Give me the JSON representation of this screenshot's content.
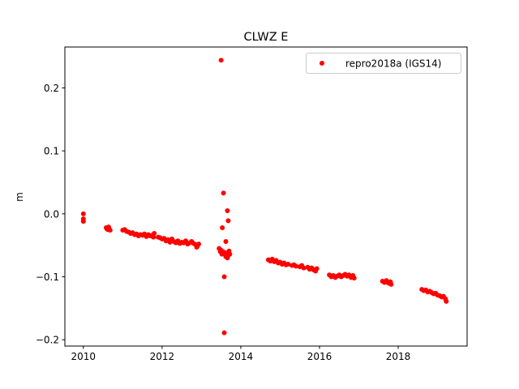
{
  "chart_data": {
    "type": "scatter",
    "title": "CLWZ E",
    "xlabel": "",
    "ylabel": "m",
    "xlim": [
      2009.53,
      2019.75
    ],
    "ylim": [
      -0.21,
      0.265
    ],
    "xticks": [
      2010,
      2012,
      2014,
      2016,
      2018
    ],
    "xtick_labels": [
      "2010",
      "2012",
      "2014",
      "2016",
      "2018"
    ],
    "yticks": [
      0.2,
      0.1,
      0.0,
      -0.1,
      -0.2
    ],
    "ytick_labels": [
      "0.2",
      "0.1",
      "0.0",
      "−0.1",
      "−0.2"
    ],
    "grid": false,
    "legend": {
      "placement": "top-right",
      "entries": [
        {
          "label": "repro2018a (IGS14)",
          "color": "#ff0000",
          "marker": "circle"
        }
      ]
    },
    "series": [
      {
        "name": "repro2018a (IGS14)",
        "color": "#ff0000",
        "points": [
          [
            2010.0,
            0.0
          ],
          [
            2010.0,
            -0.008
          ],
          [
            2010.0,
            -0.012
          ],
          [
            2010.58,
            -0.022
          ],
          [
            2010.62,
            -0.025
          ],
          [
            2010.65,
            -0.023
          ],
          [
            2010.68,
            -0.026
          ],
          [
            2010.64,
            -0.021
          ],
          [
            2010.6,
            -0.024
          ],
          [
            2011.0,
            -0.026
          ],
          [
            2011.05,
            -0.025
          ],
          [
            2011.1,
            -0.028
          ],
          [
            2011.15,
            -0.029
          ],
          [
            2011.2,
            -0.031
          ],
          [
            2011.25,
            -0.03
          ],
          [
            2011.3,
            -0.033
          ],
          [
            2011.35,
            -0.032
          ],
          [
            2011.4,
            -0.035
          ],
          [
            2011.45,
            -0.033
          ],
          [
            2011.5,
            -0.034
          ],
          [
            2011.55,
            -0.032
          ],
          [
            2011.6,
            -0.036
          ],
          [
            2011.65,
            -0.033
          ],
          [
            2011.7,
            -0.035
          ],
          [
            2011.75,
            -0.034
          ],
          [
            2011.8,
            -0.031
          ],
          [
            2011.78,
            -0.037
          ],
          [
            2011.9,
            -0.037
          ],
          [
            2011.95,
            -0.038
          ],
          [
            2012.0,
            -0.04
          ],
          [
            2012.05,
            -0.039
          ],
          [
            2012.1,
            -0.043
          ],
          [
            2012.15,
            -0.041
          ],
          [
            2012.2,
            -0.045
          ],
          [
            2012.25,
            -0.04
          ],
          [
            2012.3,
            -0.044
          ],
          [
            2012.35,
            -0.046
          ],
          [
            2012.4,
            -0.043
          ],
          [
            2012.45,
            -0.047
          ],
          [
            2012.5,
            -0.045
          ],
          [
            2012.55,
            -0.046
          ],
          [
            2012.6,
            -0.043
          ],
          [
            2012.65,
            -0.048
          ],
          [
            2012.7,
            -0.046
          ],
          [
            2012.75,
            -0.044
          ],
          [
            2012.8,
            -0.047
          ],
          [
            2012.85,
            -0.049
          ],
          [
            2012.9,
            -0.051
          ],
          [
            2012.93,
            -0.048
          ],
          [
            2012.88,
            -0.053
          ],
          [
            2013.45,
            -0.055
          ],
          [
            2013.48,
            -0.06
          ],
          [
            2013.5,
            -0.058
          ],
          [
            2013.52,
            -0.064
          ],
          [
            2013.55,
            -0.06
          ],
          [
            2013.6,
            -0.062
          ],
          [
            2013.62,
            -0.068
          ],
          [
            2013.65,
            -0.063
          ],
          [
            2013.68,
            -0.066
          ],
          [
            2013.7,
            -0.059
          ],
          [
            2013.72,
            -0.064
          ],
          [
            2013.66,
            -0.07
          ],
          [
            2013.5,
            0.244
          ],
          [
            2013.56,
            0.033
          ],
          [
            2013.66,
            0.005
          ],
          [
            2013.68,
            -0.011
          ],
          [
            2013.53,
            -0.022
          ],
          [
            2013.62,
            -0.044
          ],
          [
            2013.58,
            -0.1
          ],
          [
            2013.58,
            -0.189
          ],
          [
            2014.7,
            -0.073
          ],
          [
            2014.75,
            -0.075
          ],
          [
            2014.8,
            -0.072
          ],
          [
            2014.85,
            -0.076
          ],
          [
            2014.9,
            -0.074
          ],
          [
            2014.95,
            -0.078
          ],
          [
            2015.0,
            -0.077
          ],
          [
            2015.05,
            -0.08
          ],
          [
            2015.1,
            -0.078
          ],
          [
            2015.15,
            -0.081
          ],
          [
            2015.2,
            -0.08
          ],
          [
            2015.3,
            -0.082
          ],
          [
            2015.35,
            -0.081
          ],
          [
            2015.4,
            -0.083
          ],
          [
            2015.5,
            -0.084
          ],
          [
            2015.55,
            -0.082
          ],
          [
            2015.6,
            -0.086
          ],
          [
            2015.7,
            -0.085
          ],
          [
            2015.75,
            -0.088
          ],
          [
            2015.8,
            -0.086
          ],
          [
            2015.85,
            -0.089
          ],
          [
            2015.9,
            -0.091
          ],
          [
            2015.93,
            -0.087
          ],
          [
            2016.25,
            -0.097
          ],
          [
            2016.3,
            -0.1
          ],
          [
            2016.35,
            -0.098
          ],
          [
            2016.4,
            -0.101
          ],
          [
            2016.45,
            -0.099
          ],
          [
            2016.5,
            -0.097
          ],
          [
            2016.55,
            -0.1
          ],
          [
            2016.6,
            -0.098
          ],
          [
            2016.65,
            -0.096
          ],
          [
            2016.7,
            -0.099
          ],
          [
            2016.75,
            -0.097
          ],
          [
            2016.8,
            -0.101
          ],
          [
            2016.85,
            -0.098
          ],
          [
            2016.88,
            -0.102
          ],
          [
            2017.6,
            -0.107
          ],
          [
            2017.65,
            -0.109
          ],
          [
            2017.7,
            -0.106
          ],
          [
            2017.75,
            -0.11
          ],
          [
            2017.8,
            -0.108
          ],
          [
            2017.82,
            -0.112
          ],
          [
            2018.6,
            -0.12
          ],
          [
            2018.65,
            -0.122
          ],
          [
            2018.7,
            -0.121
          ],
          [
            2018.75,
            -0.124
          ],
          [
            2018.8,
            -0.123
          ],
          [
            2018.85,
            -0.125
          ],
          [
            2018.9,
            -0.127
          ],
          [
            2018.95,
            -0.126
          ],
          [
            2019.0,
            -0.129
          ],
          [
            2019.05,
            -0.13
          ],
          [
            2019.1,
            -0.132
          ],
          [
            2019.15,
            -0.131
          ],
          [
            2019.2,
            -0.135
          ],
          [
            2019.22,
            -0.139
          ]
        ]
      }
    ]
  }
}
